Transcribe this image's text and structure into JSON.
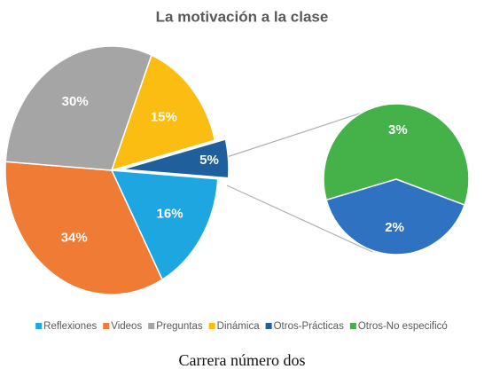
{
  "chart_data": {
    "type": "pie-of-pie",
    "title": "La motivación a la clase",
    "categories": [
      "Reflexiones",
      "Videos",
      "Preguntas",
      "Dinámica",
      "Otros-Prácticas",
      "Otros-No especificó"
    ],
    "colors": [
      "#1ea6e0",
      "#ef7b35",
      "#a5a5a5",
      "#fbbd12",
      "#1f5f9c",
      "#44b149"
    ],
    "main": {
      "values": [
        16,
        34,
        30,
        15,
        5
      ],
      "value_labels": [
        "16%",
        "34%",
        "30%",
        "15%",
        "5%"
      ],
      "colors": [
        "#1ea6e0",
        "#ef7b35",
        "#a5a5a5",
        "#fbbd12",
        "#1f5f9c"
      ]
    },
    "secondary": {
      "values": [
        3,
        2
      ],
      "value_labels": [
        "3%",
        "2%"
      ],
      "colors": [
        "#44b149",
        "#2f72c2"
      ]
    },
    "legend": "bottom",
    "caption": "Carrera número dos"
  }
}
